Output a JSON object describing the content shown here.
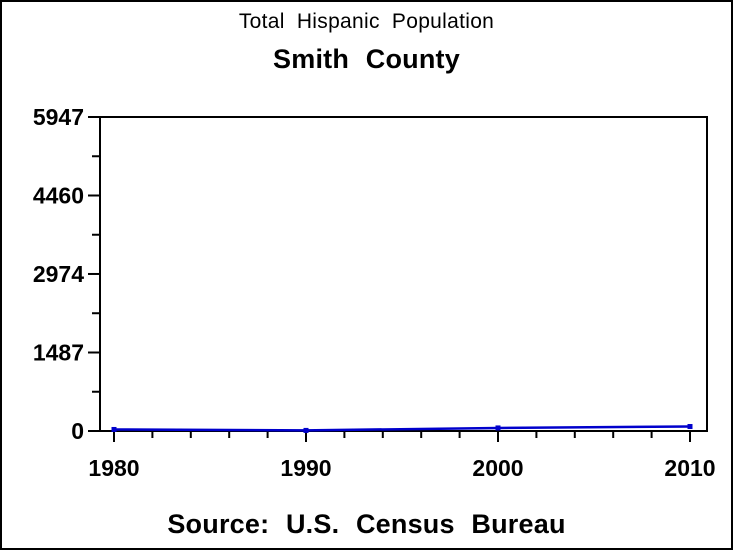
{
  "page": {
    "background": "#ffffff",
    "border_color": "#000000"
  },
  "chart_data": {
    "type": "line",
    "title": "Total Hispanic Population",
    "subtitle": "Smith County",
    "footnote": "Source: U.S. Census Bureau",
    "xlabel": "",
    "ylabel": "",
    "x": [
      1980,
      1990,
      2000,
      2010
    ],
    "series": [
      {
        "name": "Total Hispanic Population",
        "color": "#0000cc",
        "marker": "filled-square",
        "values": [
          29,
          11,
          58,
          85
        ]
      }
    ],
    "xticks": [
      1980,
      1990,
      2000,
      2010
    ],
    "x_minor_tick_step_years": 2,
    "yticks": [
      0,
      1487,
      2974,
      4460,
      5947
    ],
    "y_minor_ticks_at_midpoints": true,
    "xlim": [
      1980,
      2010
    ],
    "ylim": [
      0,
      5947
    ],
    "grid": false,
    "legend_position": "none",
    "axis_color": "#000000",
    "tick_label_color": "#000000"
  }
}
